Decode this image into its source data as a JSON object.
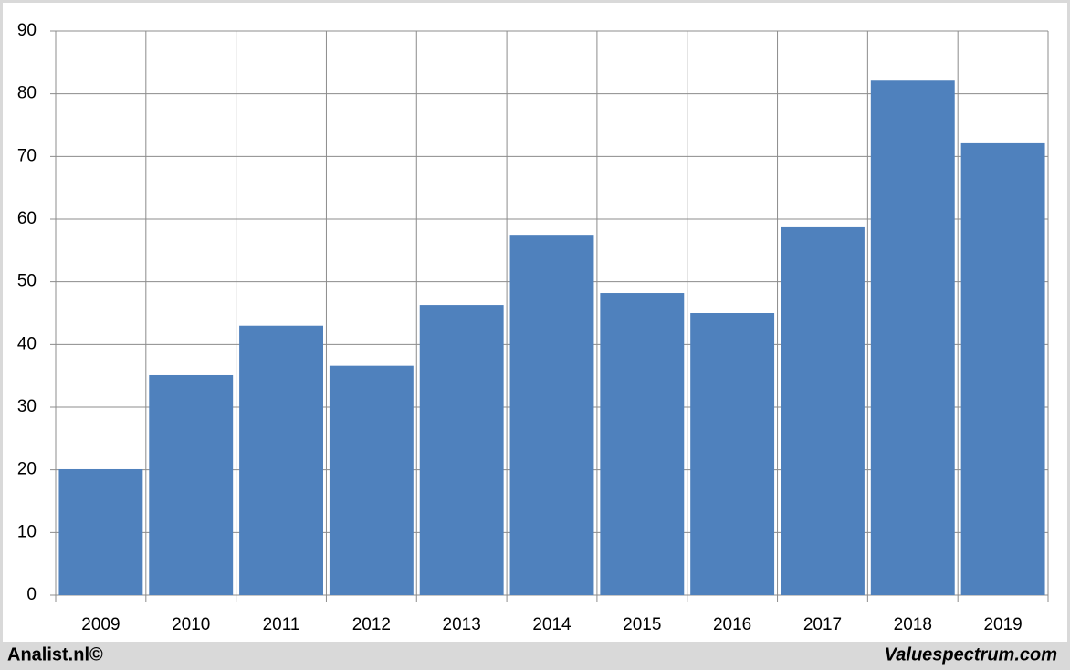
{
  "chart_data": {
    "type": "bar",
    "categories": [
      "2009",
      "2010",
      "2011",
      "2012",
      "2013",
      "2014",
      "2015",
      "2016",
      "2017",
      "2018",
      "2019"
    ],
    "values": [
      20.1,
      35.1,
      43.0,
      36.6,
      46.3,
      57.5,
      48.2,
      45.0,
      58.7,
      82.1,
      72.1
    ],
    "color": "#4f81bd",
    "ylim": [
      0,
      90
    ],
    "yticks": [
      0,
      10,
      20,
      30,
      40,
      50,
      60,
      70,
      80,
      90
    ],
    "grid": true
  },
  "footer": {
    "left": "Analist.nl©",
    "right": "Valuespectrum.com"
  }
}
